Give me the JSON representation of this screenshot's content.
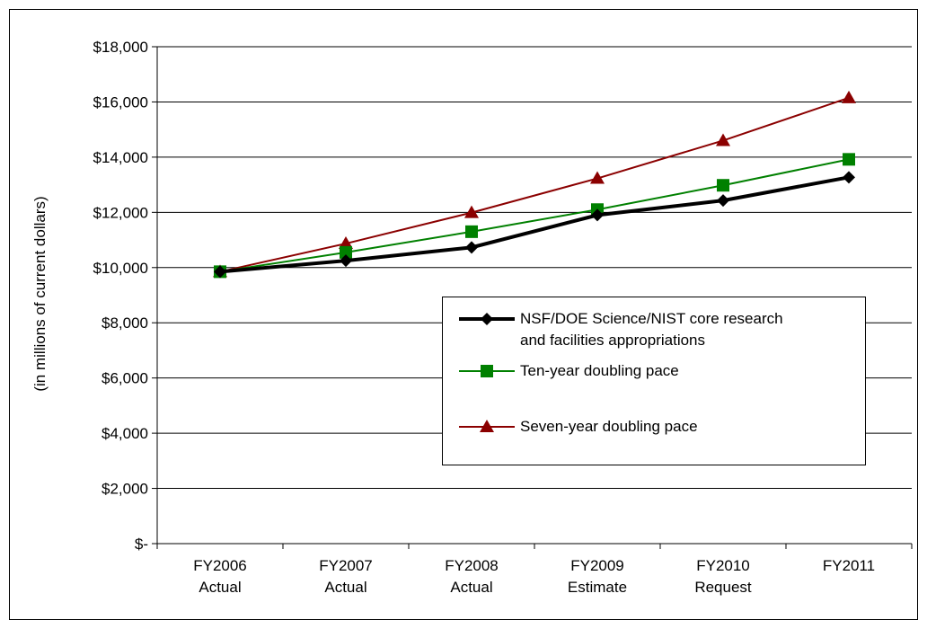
{
  "chart_data": {
    "type": "line",
    "categories": [
      "FY2006\nActual",
      "FY2007\nActual",
      "FY2008\nActual",
      "FY2009\nEstimate",
      "FY2010\nRequest",
      "FY2011"
    ],
    "series": [
      {
        "name": "NSF/DOE Science/NIST core research\nand facilities appropriations",
        "values": [
          9850,
          10250,
          10730,
          11900,
          12430,
          13270
        ],
        "color": "#000000",
        "marker": "diamond"
      },
      {
        "name": "Ten-year doubling pace",
        "values": [
          9850,
          10550,
          11300,
          12100,
          12980,
          13920
        ],
        "color": "#008000",
        "marker": "square"
      },
      {
        "name": "Seven-year doubling pace",
        "values": [
          9850,
          10870,
          11990,
          13230,
          14600,
          16150
        ],
        "color": "#8B0000",
        "marker": "triangle"
      }
    ],
    "ylabel": "(in millions of current dollars)",
    "xlabel": "",
    "title": "",
    "ylim": [
      0,
      18000
    ],
    "yticks": [
      0,
      2000,
      4000,
      6000,
      8000,
      10000,
      12000,
      14000,
      16000,
      18000
    ],
    "ytick_labels": [
      "$-",
      "$2,000",
      "$4,000",
      "$6,000",
      "$8,000",
      "$10,000",
      "$12,000",
      "$14,000",
      "$16,000",
      "$18,000"
    ],
    "grid": "horizontal",
    "legend_position": "center-right"
  }
}
